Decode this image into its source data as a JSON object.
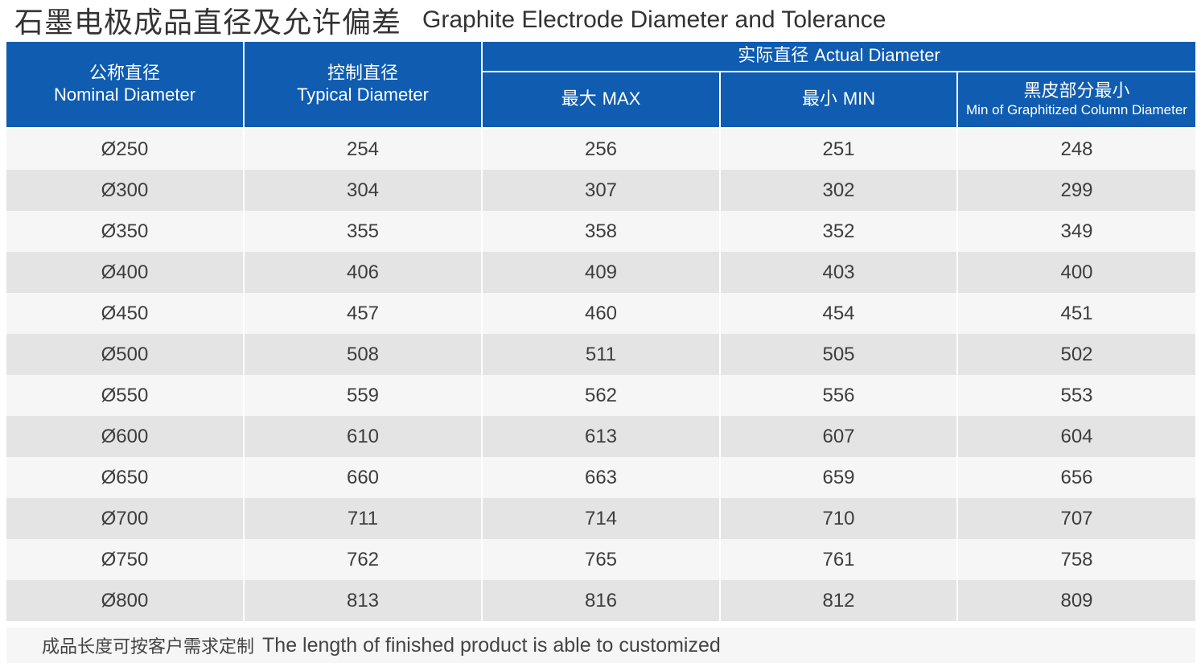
{
  "title": {
    "cn": "石墨电极成品直径及允许偏差",
    "en": "Graphite Electrode Diameter and Tolerance"
  },
  "headers": {
    "nominal": {
      "cn": "公称直径",
      "en": "Nominal Diameter"
    },
    "typical": {
      "cn": "控制直径",
      "en": "Typical Diameter"
    },
    "actual": {
      "cn": "实际直径",
      "en": "Actual Diameter"
    },
    "max": {
      "cn": "最大",
      "en": "MAX"
    },
    "min": {
      "cn": "最小",
      "en": "MIN"
    },
    "column": {
      "cn": "黑皮部分最小",
      "en": "Min of Graphitized Column Diameter"
    }
  },
  "rows": [
    [
      "Ø250",
      "254",
      "256",
      "251",
      "248"
    ],
    [
      "Ø300",
      "304",
      "307",
      "302",
      "299"
    ],
    [
      "Ø350",
      "355",
      "358",
      "352",
      "349"
    ],
    [
      "Ø400",
      "406",
      "409",
      "403",
      "400"
    ],
    [
      "Ø450",
      "457",
      "460",
      "454",
      "451"
    ],
    [
      "Ø500",
      "508",
      "511",
      "505",
      "502"
    ],
    [
      "Ø550",
      "559",
      "562",
      "556",
      "553"
    ],
    [
      "Ø600",
      "610",
      "613",
      "607",
      "604"
    ],
    [
      "Ø650",
      "660",
      "663",
      "659",
      "656"
    ],
    [
      "Ø700",
      "711",
      "714",
      "710",
      "707"
    ],
    [
      "Ø750",
      "762",
      "765",
      "761",
      "758"
    ],
    [
      "Ø800",
      "813",
      "816",
      "812",
      "809"
    ]
  ],
  "note": {
    "cn": "成品长度可按客户需求定制",
    "en": "The length of finished product is able to customized"
  },
  "colors": {
    "header_bg": "#0f5cb0",
    "row_light": "#f6f6f6",
    "row_dark": "#e4e4e4"
  }
}
